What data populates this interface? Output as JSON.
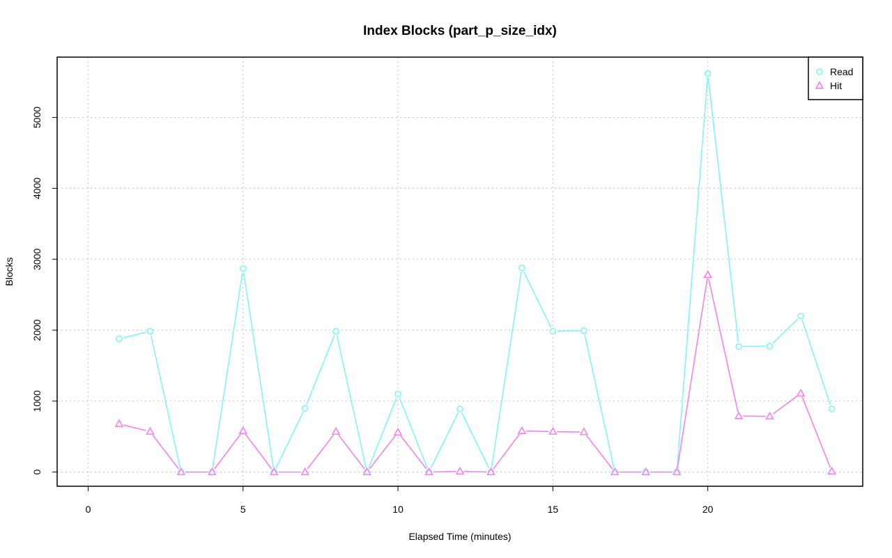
{
  "chart_data": {
    "type": "line",
    "title": "Index Blocks (part_p_size_idx)",
    "xlabel": "Elapsed Time (minutes)",
    "ylabel": "Blocks",
    "xlim": [
      -1,
      25
    ],
    "ylim": [
      -200,
      5850
    ],
    "xticks": [
      0,
      5,
      10,
      15,
      20
    ],
    "yticks": [
      0,
      1000,
      2000,
      3000,
      4000,
      5000
    ],
    "grid": true,
    "legend_position": "top-right",
    "x": [
      1,
      2,
      3,
      4,
      5,
      6,
      7,
      8,
      9,
      10,
      11,
      12,
      13,
      14,
      15,
      16,
      17,
      18,
      19,
      20,
      21,
      22,
      23,
      24
    ],
    "series": [
      {
        "name": "Read",
        "color": "#7ff5f5",
        "marker": "circle",
        "values": [
          1880,
          1985,
          0,
          0,
          2870,
          0,
          900,
          1985,
          0,
          1100,
          0,
          890,
          0,
          2880,
          1985,
          1995,
          0,
          0,
          0,
          5620,
          1770,
          1775,
          2200,
          890
        ]
      },
      {
        "name": "Hit",
        "color": "#f57ff5",
        "marker": "triangle",
        "values": [
          680,
          570,
          0,
          0,
          580,
          0,
          0,
          570,
          0,
          560,
          0,
          10,
          0,
          580,
          570,
          565,
          0,
          0,
          0,
          2780,
          790,
          785,
          1110,
          10
        ]
      }
    ]
  }
}
